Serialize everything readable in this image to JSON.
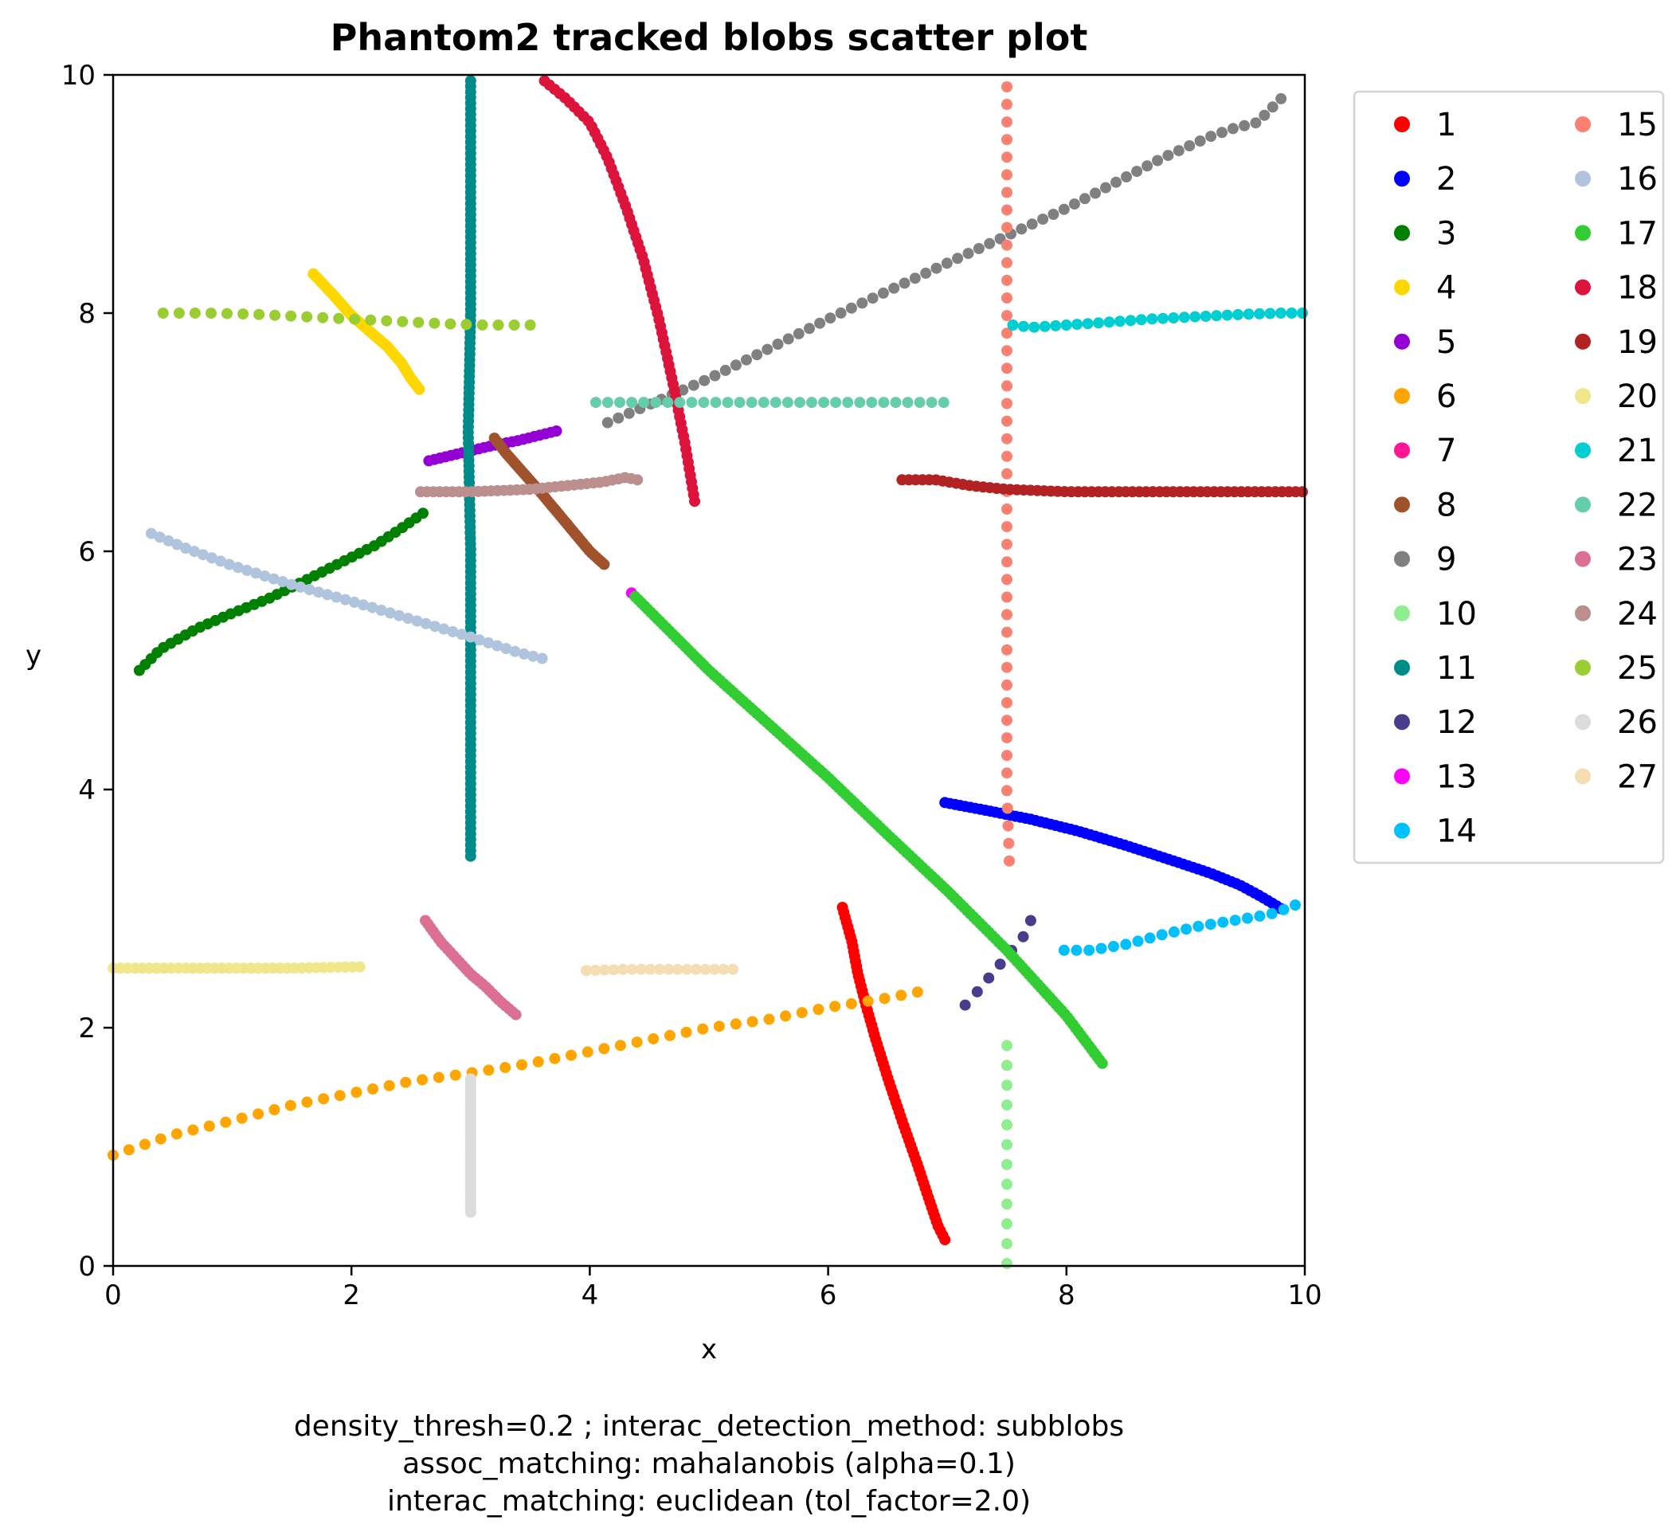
{
  "chart_data": {
    "type": "scatter",
    "title": "Phantom2 tracked blobs scatter plot",
    "xlabel": "x",
    "ylabel": "y",
    "xlim": [
      0,
      10
    ],
    "ylim": [
      0,
      10
    ],
    "xticks": [
      0,
      2,
      4,
      6,
      8,
      10
    ],
    "yticks": [
      0,
      2,
      4,
      6,
      8,
      10
    ],
    "grid": false,
    "legend_placement": "outside-right-top",
    "legend_columns": 2,
    "caption": [
      "density_thresh=0.2 ; interac_detection_method: subblobs",
      "assoc_matching: mahalanobis (alpha=0.1)",
      "interac_matching: euclidean (tol_factor=2.0)"
    ],
    "series": [
      {
        "name": "1",
        "color": "#ff0000",
        "points": [
          [
            6.12,
            3.01
          ],
          [
            6.2,
            2.72
          ],
          [
            6.25,
            2.45
          ],
          [
            6.32,
            2.18
          ],
          [
            6.4,
            1.9
          ],
          [
            6.5,
            1.58
          ],
          [
            6.62,
            1.22
          ],
          [
            6.75,
            0.85
          ],
          [
            6.85,
            0.55
          ],
          [
            6.92,
            0.34
          ],
          [
            6.98,
            0.22
          ]
        ],
        "n": 70
      },
      {
        "name": "2",
        "color": "#0000ff",
        "points": [
          [
            6.98,
            3.89
          ],
          [
            7.3,
            3.83
          ],
          [
            7.7,
            3.75
          ],
          [
            8.1,
            3.65
          ],
          [
            8.5,
            3.53
          ],
          [
            8.9,
            3.4
          ],
          [
            9.2,
            3.3
          ],
          [
            9.45,
            3.2
          ],
          [
            9.6,
            3.12
          ],
          [
            9.72,
            3.05
          ],
          [
            9.8,
            3.0
          ]
        ],
        "n": 70
      },
      {
        "name": "3",
        "color": "#008000",
        "points": [
          [
            0.22,
            5.0
          ],
          [
            0.4,
            5.18
          ],
          [
            0.7,
            5.35
          ],
          [
            1.0,
            5.48
          ],
          [
            1.3,
            5.6
          ],
          [
            1.6,
            5.75
          ],
          [
            1.9,
            5.9
          ],
          [
            2.2,
            6.05
          ],
          [
            2.4,
            6.18
          ],
          [
            2.6,
            6.32
          ]
        ],
        "n": 40
      },
      {
        "name": "4",
        "color": "#ffd700",
        "points": [
          [
            1.68,
            8.33
          ],
          [
            1.85,
            8.15
          ],
          [
            2.0,
            7.98
          ],
          [
            2.15,
            7.85
          ],
          [
            2.3,
            7.72
          ],
          [
            2.42,
            7.58
          ],
          [
            2.5,
            7.45
          ],
          [
            2.57,
            7.36
          ]
        ],
        "n": 55
      },
      {
        "name": "5",
        "color": "#9400d3",
        "points": [
          [
            2.65,
            6.76
          ],
          [
            2.9,
            6.82
          ],
          [
            3.15,
            6.88
          ],
          [
            3.4,
            6.93
          ],
          [
            3.6,
            6.98
          ],
          [
            3.72,
            7.01
          ]
        ],
        "n": 24
      },
      {
        "name": "6",
        "color": "#ffa500",
        "points": [
          [
            0.0,
            0.93
          ],
          [
            0.5,
            1.1
          ],
          [
            1.0,
            1.22
          ],
          [
            1.5,
            1.35
          ],
          [
            2.0,
            1.45
          ],
          [
            2.5,
            1.55
          ],
          [
            3.0,
            1.62
          ],
          [
            3.5,
            1.7
          ],
          [
            4.0,
            1.8
          ],
          [
            4.5,
            1.9
          ],
          [
            5.0,
            2.0
          ],
          [
            5.5,
            2.07
          ],
          [
            6.0,
            2.17
          ],
          [
            6.5,
            2.25
          ],
          [
            6.75,
            2.3
          ]
        ],
        "n": 50
      },
      {
        "name": "7",
        "color": "#ff1493",
        "points": [],
        "n": 0
      },
      {
        "name": "8",
        "color": "#a0522d",
        "points": [
          [
            3.2,
            6.95
          ],
          [
            3.3,
            6.82
          ],
          [
            3.45,
            6.65
          ],
          [
            3.6,
            6.48
          ],
          [
            3.75,
            6.3
          ],
          [
            3.9,
            6.12
          ],
          [
            4.0,
            6.0
          ],
          [
            4.12,
            5.89
          ]
        ],
        "n": 50
      },
      {
        "name": "9",
        "color": "#808080",
        "points": [
          [
            4.15,
            7.08
          ],
          [
            5.0,
            7.45
          ],
          [
            6.0,
            7.95
          ],
          [
            7.0,
            8.42
          ],
          [
            8.0,
            8.88
          ],
          [
            8.8,
            9.3
          ],
          [
            9.2,
            9.48
          ],
          [
            9.4,
            9.55
          ],
          [
            9.6,
            9.6
          ],
          [
            9.7,
            9.7
          ],
          [
            9.8,
            9.8
          ]
        ],
        "n": 65
      },
      {
        "name": "10",
        "color": "#90ee90",
        "points": [
          [
            7.5,
            1.85
          ],
          [
            7.5,
            1.65
          ],
          [
            7.5,
            1.4
          ],
          [
            7.5,
            1.1
          ],
          [
            7.5,
            0.8
          ],
          [
            7.5,
            0.5
          ],
          [
            7.5,
            0.25
          ],
          [
            7.5,
            0.1
          ],
          [
            7.5,
            0.02
          ]
        ],
        "n": 12
      },
      {
        "name": "11",
        "color": "#008b8b",
        "points": [
          [
            3.0,
            9.95
          ],
          [
            3.0,
            9.0
          ],
          [
            3.0,
            8.0
          ],
          [
            2.98,
            7.0
          ],
          [
            3.0,
            6.0
          ],
          [
            3.0,
            5.0
          ],
          [
            3.0,
            4.0
          ],
          [
            3.0,
            3.44
          ]
        ],
        "n": 140
      },
      {
        "name": "12",
        "color": "#483d8b",
        "points": [
          [
            7.15,
            2.19
          ],
          [
            7.25,
            2.3
          ],
          [
            7.35,
            2.42
          ],
          [
            7.45,
            2.54
          ],
          [
            7.55,
            2.66
          ],
          [
            7.65,
            2.78
          ],
          [
            7.7,
            2.9
          ]
        ],
        "n": 7
      },
      {
        "name": "13",
        "color": "#ff00ff",
        "points": [
          [
            4.35,
            5.65
          ]
        ],
        "n": 1
      },
      {
        "name": "14",
        "color": "#00bfff",
        "points": [
          [
            7.98,
            2.65
          ],
          [
            8.2,
            2.65
          ],
          [
            8.5,
            2.7
          ],
          [
            8.8,
            2.78
          ],
          [
            9.1,
            2.85
          ],
          [
            9.4,
            2.9
          ],
          [
            9.7,
            2.95
          ],
          [
            9.85,
            3.0
          ],
          [
            9.92,
            3.03
          ]
        ],
        "n": 20
      },
      {
        "name": "15",
        "color": "#fa8072",
        "points": [
          [
            7.5,
            9.9
          ],
          [
            7.5,
            9.0
          ],
          [
            7.5,
            8.0
          ],
          [
            7.5,
            7.0
          ],
          [
            7.5,
            6.0
          ],
          [
            7.5,
            5.0
          ],
          [
            7.5,
            4.0
          ],
          [
            7.52,
            3.4
          ]
        ],
        "n": 45
      },
      {
        "name": "16",
        "color": "#b0c4de",
        "points": [
          [
            0.32,
            6.15
          ],
          [
            0.6,
            6.03
          ],
          [
            1.0,
            5.88
          ],
          [
            1.5,
            5.72
          ],
          [
            2.0,
            5.58
          ],
          [
            2.5,
            5.43
          ],
          [
            3.0,
            5.28
          ],
          [
            3.4,
            5.15
          ],
          [
            3.6,
            5.1
          ]
        ],
        "n": 45
      },
      {
        "name": "17",
        "color": "#32cd32",
        "points": [
          [
            4.38,
            5.62
          ],
          [
            5.0,
            5.0
          ],
          [
            5.5,
            4.55
          ],
          [
            6.0,
            4.1
          ],
          [
            6.5,
            3.62
          ],
          [
            7.0,
            3.15
          ],
          [
            7.5,
            2.65
          ],
          [
            8.0,
            2.1
          ],
          [
            8.3,
            1.7
          ]
        ],
        "n": 150
      },
      {
        "name": "18",
        "color": "#dc143c",
        "points": [
          [
            3.62,
            9.95
          ],
          [
            3.8,
            9.8
          ],
          [
            4.0,
            9.6
          ],
          [
            4.15,
            9.3
          ],
          [
            4.3,
            8.9
          ],
          [
            4.45,
            8.45
          ],
          [
            4.58,
            7.95
          ],
          [
            4.7,
            7.4
          ],
          [
            4.8,
            6.9
          ],
          [
            4.88,
            6.42
          ]
        ],
        "n": 70
      },
      {
        "name": "19",
        "color": "#b22222",
        "points": [
          [
            6.62,
            6.6
          ],
          [
            6.9,
            6.6
          ],
          [
            7.2,
            6.55
          ],
          [
            7.5,
            6.52
          ],
          [
            8.0,
            6.5
          ],
          [
            8.5,
            6.5
          ],
          [
            9.0,
            6.5
          ],
          [
            9.5,
            6.5
          ],
          [
            9.98,
            6.5
          ]
        ],
        "n": 60
      },
      {
        "name": "20",
        "color": "#f0e68c",
        "points": [
          [
            0.0,
            2.5
          ],
          [
            0.5,
            2.5
          ],
          [
            1.0,
            2.5
          ],
          [
            1.5,
            2.5
          ],
          [
            2.0,
            2.51
          ],
          [
            2.07,
            2.51
          ]
        ],
        "n": 35
      },
      {
        "name": "21",
        "color": "#00ced1",
        "points": [
          [
            7.55,
            7.9
          ],
          [
            7.7,
            7.88
          ],
          [
            8.0,
            7.9
          ],
          [
            8.3,
            7.92
          ],
          [
            8.7,
            7.95
          ],
          [
            9.1,
            7.97
          ],
          [
            9.5,
            7.99
          ],
          [
            9.8,
            8.0
          ],
          [
            9.98,
            8.0
          ]
        ],
        "n": 28
      },
      {
        "name": "22",
        "color": "#66cdaa",
        "points": [
          [
            4.05,
            7.25
          ],
          [
            4.5,
            7.25
          ],
          [
            5.0,
            7.25
          ],
          [
            5.5,
            7.25
          ],
          [
            6.0,
            7.25
          ],
          [
            6.5,
            7.25
          ],
          [
            6.97,
            7.25
          ]
        ],
        "n": 30
      },
      {
        "name": "23",
        "color": "#db7093",
        "points": [
          [
            2.62,
            2.9
          ],
          [
            2.75,
            2.72
          ],
          [
            2.88,
            2.58
          ],
          [
            3.0,
            2.45
          ],
          [
            3.12,
            2.35
          ],
          [
            3.25,
            2.22
          ],
          [
            3.38,
            2.11
          ]
        ],
        "n": 30
      },
      {
        "name": "24",
        "color": "#bc8f8f",
        "points": [
          [
            2.58,
            6.5
          ],
          [
            3.0,
            6.5
          ],
          [
            3.5,
            6.52
          ],
          [
            3.8,
            6.55
          ],
          [
            4.1,
            6.58
          ],
          [
            4.3,
            6.62
          ],
          [
            4.4,
            6.6
          ]
        ],
        "n": 35
      },
      {
        "name": "25",
        "color": "#9acd32",
        "points": [
          [
            0.42,
            8.0
          ],
          [
            0.8,
            8.0
          ],
          [
            1.2,
            7.99
          ],
          [
            1.6,
            7.97
          ],
          [
            2.0,
            7.95
          ],
          [
            2.4,
            7.93
          ],
          [
            2.8,
            7.91
          ],
          [
            3.1,
            7.9
          ],
          [
            3.3,
            7.9
          ],
          [
            3.5,
            7.9
          ]
        ],
        "n": 24
      },
      {
        "name": "26",
        "color": "#dcdcdc",
        "points": [
          [
            3.0,
            1.57
          ],
          [
            3.0,
            1.3
          ],
          [
            3.0,
            1.0
          ],
          [
            3.0,
            0.75
          ],
          [
            3.0,
            0.45
          ]
        ],
        "n": 40
      },
      {
        "name": "27",
        "color": "#f5deb3",
        "points": [
          [
            3.97,
            2.48
          ],
          [
            4.3,
            2.49
          ],
          [
            4.7,
            2.49
          ],
          [
            5.0,
            2.49
          ],
          [
            5.2,
            2.49
          ]
        ],
        "n": 17
      }
    ]
  }
}
